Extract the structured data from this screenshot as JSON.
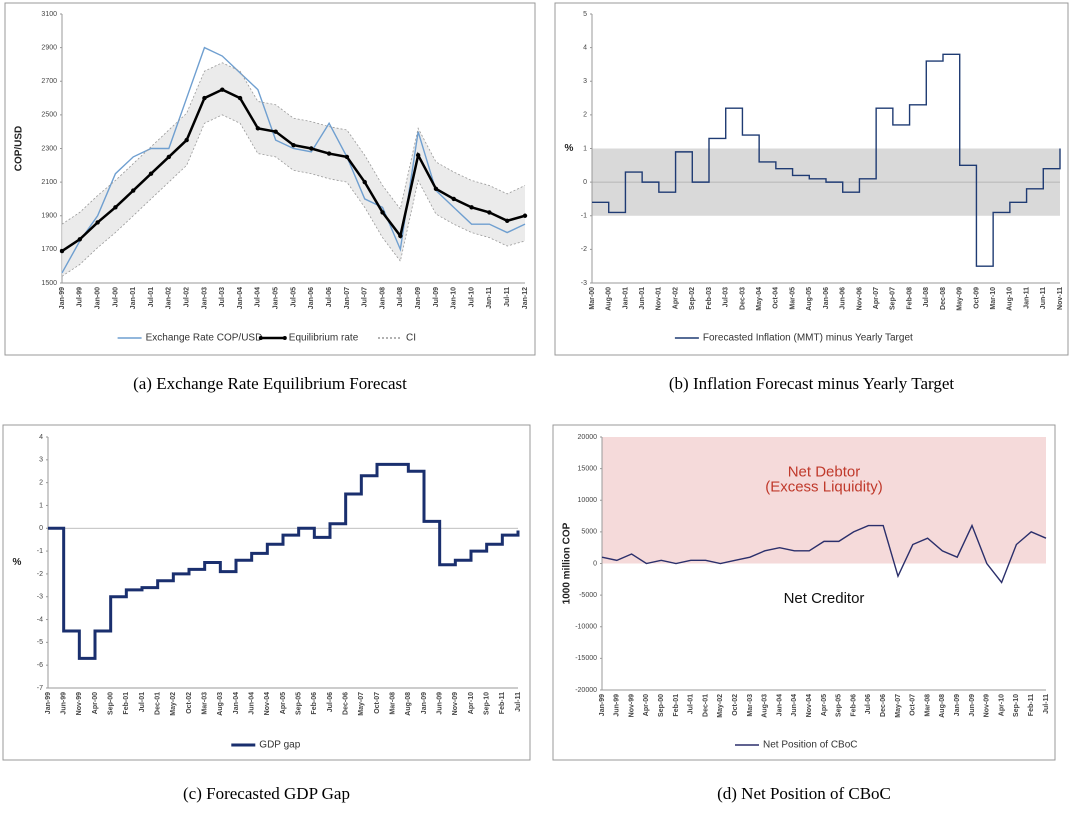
{
  "chart_data": [
    {
      "type": "line",
      "caption": "(a) Exchange Rate Equilibrium Forecast",
      "ylabel": "COP/USD",
      "categories": [
        "Jan-99",
        "Jul-99",
        "Jan-00",
        "Jul-00",
        "Jan-01",
        "Jul-01",
        "Jan-02",
        "Jul-02",
        "Jan-03",
        "Jul-03",
        "Jan-04",
        "Jul-04",
        "Jan-05",
        "Jul-05",
        "Jan-06",
        "Jul-06",
        "Jan-07",
        "Jul-07",
        "Jan-08",
        "Jul-08",
        "Jan-09",
        "Jul-09",
        "Jan-10",
        "Jul-10",
        "Jan-11",
        "Jul-11",
        "Jan-12"
      ],
      "series": [
        {
          "name": "Exchange Rate COP/USD",
          "color": "#6f9fd0",
          "values": [
            1560,
            1750,
            1900,
            2150,
            2250,
            2300,
            2300,
            2600,
            2900,
            2850,
            2750,
            2650,
            2350,
            2300,
            2280,
            2450,
            2250,
            2000,
            1950,
            1700,
            2400,
            2050,
            1950,
            1850,
            1850,
            1800,
            1850
          ]
        },
        {
          "name": "Equilibrium rate",
          "color": "#000000",
          "markers": true,
          "values": [
            1690,
            1760,
            1860,
            1950,
            2050,
            2150,
            2250,
            2350,
            2600,
            2650,
            2600,
            2420,
            2400,
            2320,
            2300,
            2270,
            2250,
            2100,
            1920,
            1780,
            2260,
            2060,
            2000,
            1950,
            1920,
            1870,
            1900
          ]
        },
        {
          "name": "CI",
          "color": "#999999",
          "dashed": true,
          "values": [
            1850,
            1920,
            2020,
            2110,
            2210,
            2310,
            2410,
            2510,
            2760,
            2810,
            2760,
            2580,
            2560,
            2480,
            2460,
            2430,
            2410,
            2260,
            2080,
            1940,
            2420,
            2220,
            2160,
            2110,
            2080,
            2030,
            2080
          ],
          "lower": [
            1540,
            1610,
            1710,
            1800,
            1900,
            2000,
            2100,
            2200,
            2450,
            2500,
            2450,
            2270,
            2250,
            2170,
            2150,
            2120,
            2100,
            1950,
            1770,
            1630,
            2110,
            1910,
            1850,
            1800,
            1770,
            1720,
            1750
          ]
        }
      ],
      "ylim": [
        1500,
        3100
      ],
      "yticks": [
        1500,
        1700,
        1900,
        2100,
        2300,
        2500,
        2700,
        2900,
        3100
      ],
      "zero_line": false
    },
    {
      "type": "line",
      "caption": "(b) Inflation Forecast minus Yearly Target",
      "ylabel": "%",
      "categories": [
        "Mar-00",
        "Aug-00",
        "Jan-01",
        "Jun-01",
        "Nov-01",
        "Apr-02",
        "Sep-02",
        "Feb-03",
        "Jul-03",
        "Dec-03",
        "May-04",
        "Oct-04",
        "Mar-05",
        "Aug-05",
        "Jan-06",
        "Jun-06",
        "Nov-06",
        "Apr-07",
        "Sep-07",
        "Feb-08",
        "Jul-08",
        "Dec-08",
        "May-09",
        "Oct-09",
        "Mar-10",
        "Aug-10",
        "Jan-11",
        "Jun-11",
        "Nov-11"
      ],
      "series": [
        {
          "name": "Forecasted Inflation (MMT) minus Yearly Target",
          "color": "#1f3b73",
          "step": true,
          "values": [
            -0.6,
            -0.9,
            0.3,
            0,
            -0.3,
            0.9,
            0,
            1.3,
            2.2,
            1.4,
            0.6,
            0.4,
            0.2,
            0.1,
            0,
            -0.3,
            0.1,
            2.2,
            1.7,
            2.3,
            3.6,
            3.8,
            0.5,
            -2.5,
            -0.9,
            -0.6,
            -0.2,
            0.4,
            1.0
          ]
        }
      ],
      "band": [
        -1,
        1
      ],
      "band_color": "#d9d9d9",
      "ylim": [
        -3,
        5
      ],
      "yticks": [
        -3,
        -2,
        -1,
        0,
        1,
        2,
        3,
        4,
        5
      ],
      "zero_line": true
    },
    {
      "type": "line",
      "caption": "(c) Forecasted GDP Gap",
      "ylabel": "%",
      "categories": [
        "Jan-99",
        "Jun-99",
        "Nov-99",
        "Apr-00",
        "Sep-00",
        "Feb-01",
        "Jul-01",
        "Dec-01",
        "May-02",
        "Oct-02",
        "Mar-03",
        "Aug-03",
        "Jan-04",
        "Jun-04",
        "Nov-04",
        "Apr-05",
        "Sep-05",
        "Feb-06",
        "Jul-06",
        "Dec-06",
        "May-07",
        "Oct-07",
        "Mar-08",
        "Aug-08",
        "Jan-09",
        "Jun-09",
        "Nov-09",
        "Apr-10",
        "Sep-10",
        "Feb-11",
        "Jul-11"
      ],
      "series": [
        {
          "name": "GDP gap",
          "color": "#1a2f6e",
          "step": true,
          "width": 3,
          "values": [
            0,
            -4.5,
            -5.7,
            -4.5,
            -3,
            -2.7,
            -2.6,
            -2.3,
            -2,
            -1.8,
            -1.5,
            -1.9,
            -1.4,
            -1.1,
            -0.7,
            -0.3,
            0,
            -0.4,
            0.2,
            1.5,
            2.3,
            2.8,
            2.8,
            2.5,
            0.3,
            -1.6,
            -1.4,
            -1,
            -0.7,
            -0.3,
            -0.1
          ]
        }
      ],
      "ylim": [
        -7,
        4
      ],
      "yticks": [
        -7,
        -6,
        -5,
        -4,
        -3,
        -2,
        -1,
        0,
        1,
        2,
        3,
        4
      ],
      "zero_line": true
    },
    {
      "type": "line",
      "caption": "(d) Net Position of CBoC",
      "ylabel": "1000 million COP",
      "categories": [
        "Jan-99",
        "Jun-99",
        "Nov-99",
        "Apr-00",
        "Sep-00",
        "Feb-01",
        "Jul-01",
        "Dec-01",
        "May-02",
        "Oct-02",
        "Mar-03",
        "Aug-03",
        "Jan-04",
        "Jun-04",
        "Nov-04",
        "Apr-05",
        "Sep-05",
        "Feb-06",
        "Jul-06",
        "Dec-06",
        "May-07",
        "Oct-07",
        "Mar-08",
        "Aug-08",
        "Jan-09",
        "Jun-09",
        "Nov-09",
        "Apr-10",
        "Sep-10",
        "Feb-11",
        "Jul-11"
      ],
      "series": [
        {
          "name": "Net Position of CBoC",
          "color": "#2b2f6b",
          "values": [
            1000,
            500,
            1500,
            0,
            500,
            0,
            500,
            500,
            0,
            500,
            1000,
            2000,
            2500,
            2000,
            2000,
            3500,
            3500,
            5000,
            6000,
            6000,
            -2000,
            3000,
            4000,
            2000,
            1000,
            6000,
            0,
            -3000,
            3000,
            5000,
            4000
          ]
        }
      ],
      "band": [
        0,
        20000
      ],
      "band_color": "#f5dada",
      "annotations": [
        "Net Debtor",
        "(Excess Liquidity)",
        "Net Creditor"
      ],
      "ylim": [
        -20000,
        20000
      ],
      "yticks": [
        -20000,
        -15000,
        -10000,
        -5000,
        0,
        5000,
        10000,
        15000,
        20000
      ],
      "zero_line": false
    }
  ]
}
